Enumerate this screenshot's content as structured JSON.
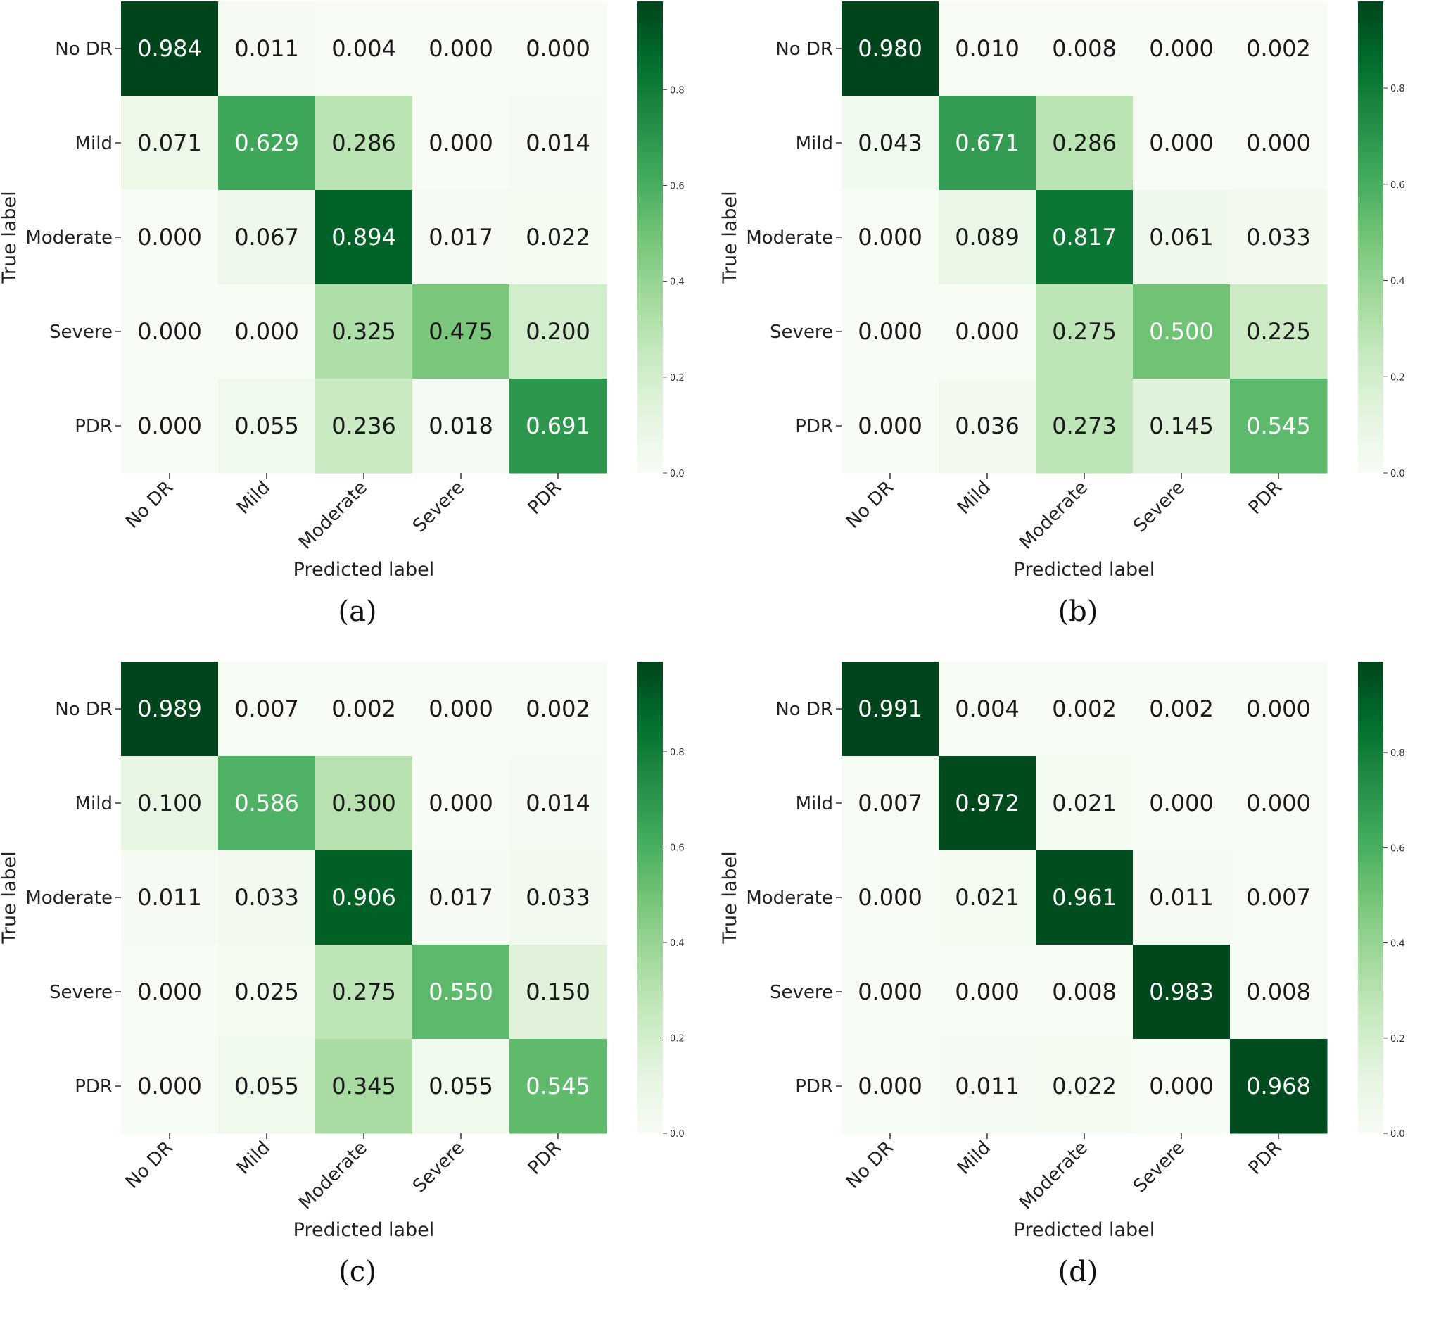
{
  "chart_data": [
    {
      "type": "heatmap",
      "caption": "(a)",
      "xlabel": "Predicted label",
      "ylabel": "True label",
      "x_categories": [
        "No DR",
        "Mild",
        "Moderate",
        "Severe",
        "PDR"
      ],
      "y_categories": [
        "No DR",
        "Mild",
        "Moderate",
        "Severe",
        "PDR"
      ],
      "matrix": [
        [
          "0.984",
          "0.011",
          "0.004",
          "0.000",
          "0.000"
        ],
        [
          "0.071",
          "0.629",
          "0.286",
          "0.000",
          "0.014"
        ],
        [
          "0.000",
          "0.067",
          "0.894",
          "0.017",
          "0.022"
        ],
        [
          "0.000",
          "0.000",
          "0.325",
          "0.475",
          "0.200"
        ],
        [
          "0.000",
          "0.055",
          "0.236",
          "0.018",
          "0.691"
        ]
      ],
      "colorbar": {
        "range": [
          0.0,
          0.984
        ],
        "ticks": [
          "0.0",
          "0.2",
          "0.4",
          "0.6",
          "0.8"
        ]
      }
    },
    {
      "type": "heatmap",
      "caption": "(b)",
      "xlabel": "Predicted label",
      "ylabel": "True label",
      "x_categories": [
        "No DR",
        "Mild",
        "Moderate",
        "Severe",
        "PDR"
      ],
      "y_categories": [
        "No DR",
        "Mild",
        "Moderate",
        "Severe",
        "PDR"
      ],
      "matrix": [
        [
          "0.980",
          "0.010",
          "0.008",
          "0.000",
          "0.002"
        ],
        [
          "0.043",
          "0.671",
          "0.286",
          "0.000",
          "0.000"
        ],
        [
          "0.000",
          "0.089",
          "0.817",
          "0.061",
          "0.033"
        ],
        [
          "0.000",
          "0.000",
          "0.275",
          "0.500",
          "0.225"
        ],
        [
          "0.000",
          "0.036",
          "0.273",
          "0.145",
          "0.545"
        ]
      ],
      "colorbar": {
        "range": [
          0.0,
          0.98
        ],
        "ticks": [
          "0.0",
          "0.2",
          "0.4",
          "0.6",
          "0.8"
        ]
      }
    },
    {
      "type": "heatmap",
      "caption": "(c)",
      "xlabel": "Predicted label",
      "ylabel": "True label",
      "x_categories": [
        "No DR",
        "Mild",
        "Moderate",
        "Severe",
        "PDR"
      ],
      "y_categories": [
        "No DR",
        "Mild",
        "Moderate",
        "Severe",
        "PDR"
      ],
      "matrix": [
        [
          "0.989",
          "0.007",
          "0.002",
          "0.000",
          "0.002"
        ],
        [
          "0.100",
          "0.586",
          "0.300",
          "0.000",
          "0.014"
        ],
        [
          "0.011",
          "0.033",
          "0.906",
          "0.017",
          "0.033"
        ],
        [
          "0.000",
          "0.025",
          "0.275",
          "0.550",
          "0.150"
        ],
        [
          "0.000",
          "0.055",
          "0.345",
          "0.055",
          "0.545"
        ]
      ],
      "colorbar": {
        "range": [
          0.0,
          0.989
        ],
        "ticks": [
          "0.0",
          "0.2",
          "0.4",
          "0.6",
          "0.8"
        ]
      }
    },
    {
      "type": "heatmap",
      "caption": "(d)",
      "xlabel": "Predicted label",
      "ylabel": "True label",
      "x_categories": [
        "No DR",
        "Mild",
        "Moderate",
        "Severe",
        "PDR"
      ],
      "y_categories": [
        "No DR",
        "Mild",
        "Moderate",
        "Severe",
        "PDR"
      ],
      "matrix": [
        [
          "0.991",
          "0.004",
          "0.002",
          "0.002",
          "0.000"
        ],
        [
          "0.007",
          "0.972",
          "0.021",
          "0.000",
          "0.000"
        ],
        [
          "0.000",
          "0.021",
          "0.961",
          "0.011",
          "0.007"
        ],
        [
          "0.000",
          "0.000",
          "0.008",
          "0.983",
          "0.008"
        ],
        [
          "0.000",
          "0.011",
          "0.022",
          "0.000",
          "0.968"
        ]
      ],
      "colorbar": {
        "range": [
          0.0,
          0.991
        ],
        "ticks": [
          "0.0",
          "0.2",
          "0.4",
          "0.6",
          "0.8"
        ]
      }
    }
  ],
  "colormap": {
    "name": "Greens",
    "low": "#f7fcf5",
    "mid": "#74c476",
    "high": "#00441b"
  }
}
